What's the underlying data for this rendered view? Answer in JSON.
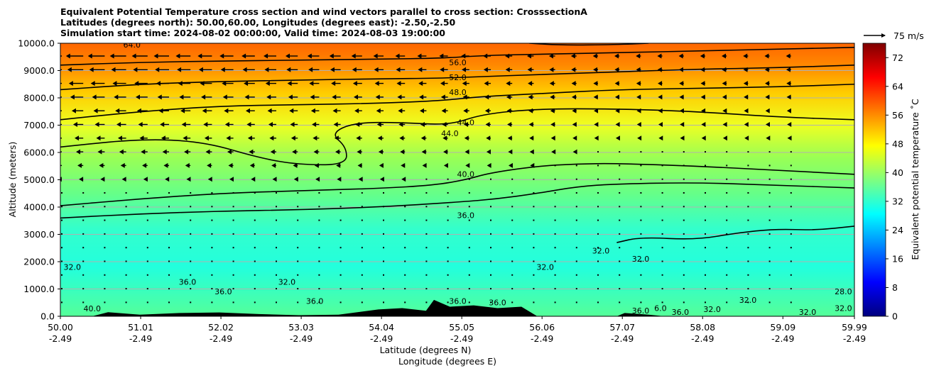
{
  "chart_data": {
    "type": "contour",
    "title_lines": [
      "Equivalent Potential Temperature cross section and wind vectors parallel to cross section: CrosssectionA",
      "Latitudes (degrees north): 50.00,60.00, Longitudes (degrees east): -2.50,-2.50",
      "Simulation start time: 2024-08-02 00:00:00, Valid time: 2024-08-03 19:00:00"
    ],
    "ylabel": "Altitude (meters)",
    "xlabel_lines": [
      "Latitude (degrees N)",
      "Longitude (degrees E)"
    ],
    "ylim": [
      0,
      10000
    ],
    "xlim": [
      50.0,
      59.99
    ],
    "y_ticks": [
      {
        "value": 0,
        "label": "0.0"
      },
      {
        "value": 1000,
        "label": "1000.0"
      },
      {
        "value": 2000,
        "label": "2000.0"
      },
      {
        "value": 3000,
        "label": "3000.0"
      },
      {
        "value": 4000,
        "label": "4000.0"
      },
      {
        "value": 5000,
        "label": "5000.0"
      },
      {
        "value": 6000,
        "label": "6000.0"
      },
      {
        "value": 7000,
        "label": "7000.0"
      },
      {
        "value": 8000,
        "label": "8000.0"
      },
      {
        "value": 9000,
        "label": "9000.0"
      },
      {
        "value": 10000,
        "label": "10000.0"
      }
    ],
    "x_ticks": [
      {
        "value": 50.0,
        "lat": "50.00",
        "lon": "-2.49"
      },
      {
        "value": 51.01,
        "lat": "51.01",
        "lon": "-2.49"
      },
      {
        "value": 52.02,
        "lat": "52.02",
        "lon": "-2.49"
      },
      {
        "value": 53.03,
        "lat": "53.03",
        "lon": "-2.49"
      },
      {
        "value": 54.04,
        "lat": "54.04",
        "lon": "-2.49"
      },
      {
        "value": 55.05,
        "lat": "55.05",
        "lon": "-2.49"
      },
      {
        "value": 56.06,
        "lat": "56.06",
        "lon": "-2.49"
      },
      {
        "value": 57.07,
        "lat": "57.07",
        "lon": "-2.49"
      },
      {
        "value": 58.08,
        "lat": "58.08",
        "lon": "-2.49"
      },
      {
        "value": 59.09,
        "lat": "59.09",
        "lon": "-2.49"
      },
      {
        "value": 59.99,
        "lat": "59.99",
        "lon": "-2.49"
      }
    ],
    "grid": "horizontal",
    "colorbar": {
      "label": "Equivalent potential temperature $^\\circ$C",
      "label_display": "Equivalent potential temperature ˚C",
      "range": [
        0,
        76
      ],
      "ticks": [
        0,
        8,
        16,
        24,
        32,
        40,
        48,
        56,
        64,
        72
      ],
      "colormap": "jet",
      "color_stops": [
        "#00007f",
        "#0000ff",
        "#007fff",
        "#00ffff",
        "#7fff7f",
        "#ffff00",
        "#ff7f00",
        "#ff0000",
        "#7f0000"
      ]
    },
    "quiver_key": {
      "label": "75 m/s"
    },
    "contours": [
      {
        "value": 36,
        "label": "36.0",
        "points": [
          [
            50.0,
            3600
          ],
          [
            51.0,
            3750
          ],
          [
            52.0,
            3850
          ],
          [
            53.0,
            3900
          ],
          [
            54.0,
            4000
          ],
          [
            55.0,
            4180
          ],
          [
            55.5,
            4300
          ],
          [
            56.0,
            4500
          ],
          [
            56.5,
            4750
          ],
          [
            57.0,
            4850
          ],
          [
            58.0,
            4900
          ],
          [
            59.0,
            4800
          ],
          [
            59.99,
            4700
          ]
        ]
      },
      {
        "value": 40,
        "label": "40.0",
        "points": [
          [
            50.0,
            4050
          ],
          [
            51.0,
            4300
          ],
          [
            52.0,
            4500
          ],
          [
            53.0,
            4600
          ],
          [
            54.0,
            4680
          ],
          [
            54.7,
            4800
          ],
          [
            55.1,
            5000
          ],
          [
            55.4,
            5250
          ],
          [
            56.0,
            5500
          ],
          [
            56.5,
            5580
          ],
          [
            57.0,
            5600
          ],
          [
            58.0,
            5500
          ],
          [
            59.0,
            5350
          ],
          [
            59.99,
            5200
          ]
        ]
      },
      {
        "value": 44,
        "label": "44.0",
        "points": [
          [
            50.0,
            6200
          ],
          [
            51.0,
            6500
          ],
          [
            51.8,
            6400
          ],
          [
            52.5,
            5800
          ],
          [
            53.0,
            5550
          ],
          [
            53.6,
            5550
          ],
          [
            53.6,
            6200
          ],
          [
            53.4,
            6700
          ],
          [
            53.7,
            7100
          ],
          [
            54.3,
            7100
          ],
          [
            54.9,
            7000
          ],
          [
            55.3,
            7400
          ],
          [
            56.0,
            7600
          ],
          [
            57.0,
            7600
          ],
          [
            58.0,
            7500
          ],
          [
            59.0,
            7300
          ],
          [
            59.99,
            7200
          ]
        ]
      },
      {
        "value": 48,
        "label": "48.0",
        "points": [
          [
            50.0,
            7200
          ],
          [
            51.0,
            7500
          ],
          [
            52.0,
            7700
          ],
          [
            53.0,
            7750
          ],
          [
            54.0,
            7800
          ],
          [
            54.8,
            7900
          ],
          [
            55.3,
            8050
          ],
          [
            56.0,
            8150
          ],
          [
            57.0,
            8300
          ],
          [
            58.0,
            8350
          ],
          [
            59.0,
            8400
          ],
          [
            59.99,
            8500
          ]
        ]
      },
      {
        "value": 52,
        "label": "52.0",
        "points": [
          [
            50.0,
            8300
          ],
          [
            51.0,
            8500
          ],
          [
            52.0,
            8600
          ],
          [
            53.0,
            8650
          ],
          [
            54.0,
            8700
          ],
          [
            54.8,
            8720
          ],
          [
            55.3,
            8780
          ],
          [
            56.0,
            8850
          ],
          [
            57.0,
            8950
          ],
          [
            58.0,
            9050
          ],
          [
            59.0,
            9100
          ],
          [
            59.99,
            9200
          ]
        ]
      },
      {
        "value": 56,
        "label": "56.0",
        "points": [
          [
            50.0,
            9200
          ],
          [
            51.0,
            9300
          ],
          [
            52.0,
            9350
          ],
          [
            53.0,
            9380
          ],
          [
            54.0,
            9420
          ],
          [
            54.8,
            9450
          ],
          [
            55.3,
            9550
          ],
          [
            56.0,
            9600
          ],
          [
            57.0,
            9650
          ],
          [
            58.0,
            9720
          ],
          [
            59.0,
            9780
          ],
          [
            59.99,
            9850
          ]
        ]
      },
      {
        "value": 64,
        "label": "64.0",
        "points": [
          [
            55.9,
            10000
          ],
          [
            56.3,
            9930
          ],
          [
            57.0,
            9950
          ],
          [
            57.4,
            10000
          ]
        ]
      },
      {
        "value": 32,
        "label": "32.0",
        "points": [
          [
            57.0,
            2700
          ],
          [
            57.3,
            2900
          ],
          [
            58.0,
            2800
          ],
          [
            58.5,
            3050
          ],
          [
            59.0,
            3200
          ],
          [
            59.5,
            3150
          ],
          [
            59.99,
            3300
          ]
        ]
      }
    ],
    "contour_labels": [
      {
        "text": "64.0",
        "x": 50.9,
        "y": 9850
      },
      {
        "text": "56.0",
        "x": 55.0,
        "y": 9200
      },
      {
        "text": "52.0",
        "x": 55.0,
        "y": 8650
      },
      {
        "text": "48.0",
        "x": 55.0,
        "y": 8100
      },
      {
        "text": "44.0",
        "x": 54.9,
        "y": 6600
      },
      {
        "text": "44.0",
        "x": 55.1,
        "y": 7000
      },
      {
        "text": "40.0",
        "x": 55.1,
        "y": 5100
      },
      {
        "text": "36.0",
        "x": 55.1,
        "y": 3600
      },
      {
        "text": "32.0",
        "x": 50.15,
        "y": 1700
      },
      {
        "text": "36.0",
        "x": 51.6,
        "y": 1150
      },
      {
        "text": "36.0",
        "x": 52.05,
        "y": 800
      },
      {
        "text": "32.0",
        "x": 52.85,
        "y": 1150
      },
      {
        "text": "36.0",
        "x": 53.2,
        "y": 450
      },
      {
        "text": "40.0",
        "x": 50.4,
        "y": 180
      },
      {
        "text": "36.0",
        "x": 55.0,
        "y": 450
      },
      {
        "text": "36.0",
        "x": 55.5,
        "y": 400
      },
      {
        "text": "32.0",
        "x": 56.1,
        "y": 1700
      },
      {
        "text": "32.0",
        "x": 56.8,
        "y": 2300
      },
      {
        "text": "32.0",
        "x": 57.3,
        "y": 2000
      },
      {
        "text": "36.0",
        "x": 57.3,
        "y": 100
      },
      {
        "text": "6.0",
        "x": 57.55,
        "y": 200
      },
      {
        "text": "36.0",
        "x": 57.8,
        "y": 50
      },
      {
        "text": "32.0",
        "x": 58.2,
        "y": 150
      },
      {
        "text": "32.0",
        "x": 58.65,
        "y": 500
      },
      {
        "text": "32.0",
        "x": 59.4,
        "y": 50
      },
      {
        "text": "28.0",
        "x": 59.85,
        "y": 800
      },
      {
        "text": "32.0",
        "x": 59.85,
        "y": 200
      }
    ],
    "terrain": [
      [
        50.0,
        0
      ],
      [
        50.4,
        0
      ],
      [
        50.6,
        150
      ],
      [
        51.0,
        60
      ],
      [
        51.5,
        120
      ],
      [
        52.0,
        140
      ],
      [
        52.5,
        80
      ],
      [
        53.0,
        40
      ],
      [
        53.5,
        60
      ],
      [
        54.0,
        250
      ],
      [
        54.3,
        300
      ],
      [
        54.6,
        200
      ],
      [
        54.7,
        600
      ],
      [
        54.9,
        350
      ],
      [
        55.2,
        400
      ],
      [
        55.5,
        300
      ],
      [
        55.8,
        350
      ],
      [
        56.0,
        0
      ],
      [
        57.0,
        0
      ],
      [
        57.1,
        120
      ],
      [
        57.4,
        60
      ],
      [
        57.6,
        0
      ],
      [
        59.99,
        0
      ]
    ]
  }
}
